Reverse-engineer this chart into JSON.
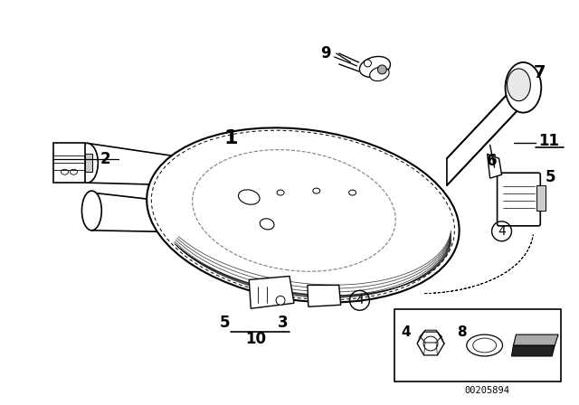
{
  "bg_color": "#ffffff",
  "part_number": "00205894",
  "fig_w": 6.4,
  "fig_h": 4.48,
  "dpi": 100
}
